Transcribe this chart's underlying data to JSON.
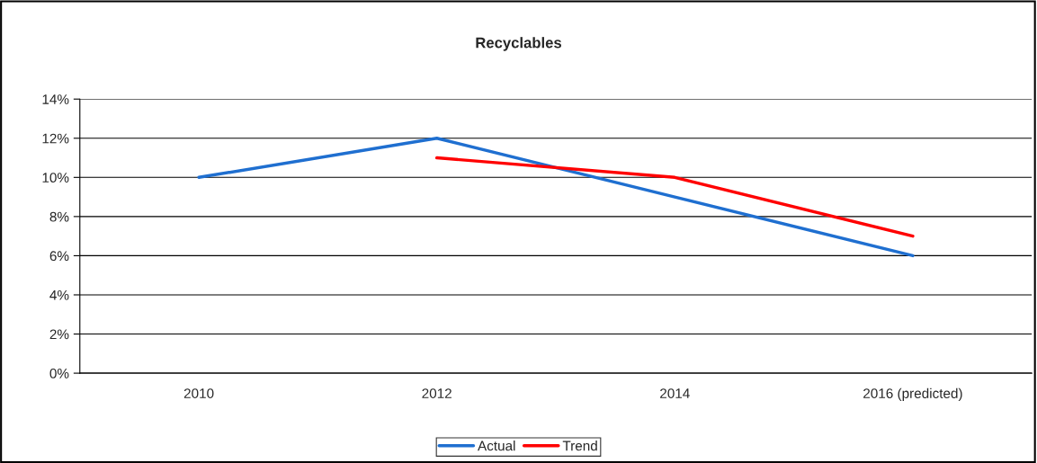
{
  "chart_data": {
    "type": "line",
    "title": "Recyclables",
    "categories": [
      "2010",
      "2012",
      "2014",
      "2016 (predicted)"
    ],
    "series": [
      {
        "name": "Actual",
        "color": "#1f6fd0",
        "values": [
          10,
          12,
          9,
          6
        ]
      },
      {
        "name": "Trend",
        "color": "#ff0000",
        "values": [
          null,
          11,
          10,
          7
        ]
      }
    ],
    "ylim": [
      0,
      14
    ],
    "yticks": [
      {
        "value": 0,
        "label": "0%"
      },
      {
        "value": 2,
        "label": "2%"
      },
      {
        "value": 4,
        "label": "4%"
      },
      {
        "value": 6,
        "label": "6%"
      },
      {
        "value": 8,
        "label": "8%"
      },
      {
        "value": 10,
        "label": "10%"
      },
      {
        "value": 12,
        "label": "12%"
      },
      {
        "value": 14,
        "label": "14%"
      }
    ],
    "grid": "y",
    "legend": "bottom",
    "marker": "none",
    "line_style": "solid"
  }
}
